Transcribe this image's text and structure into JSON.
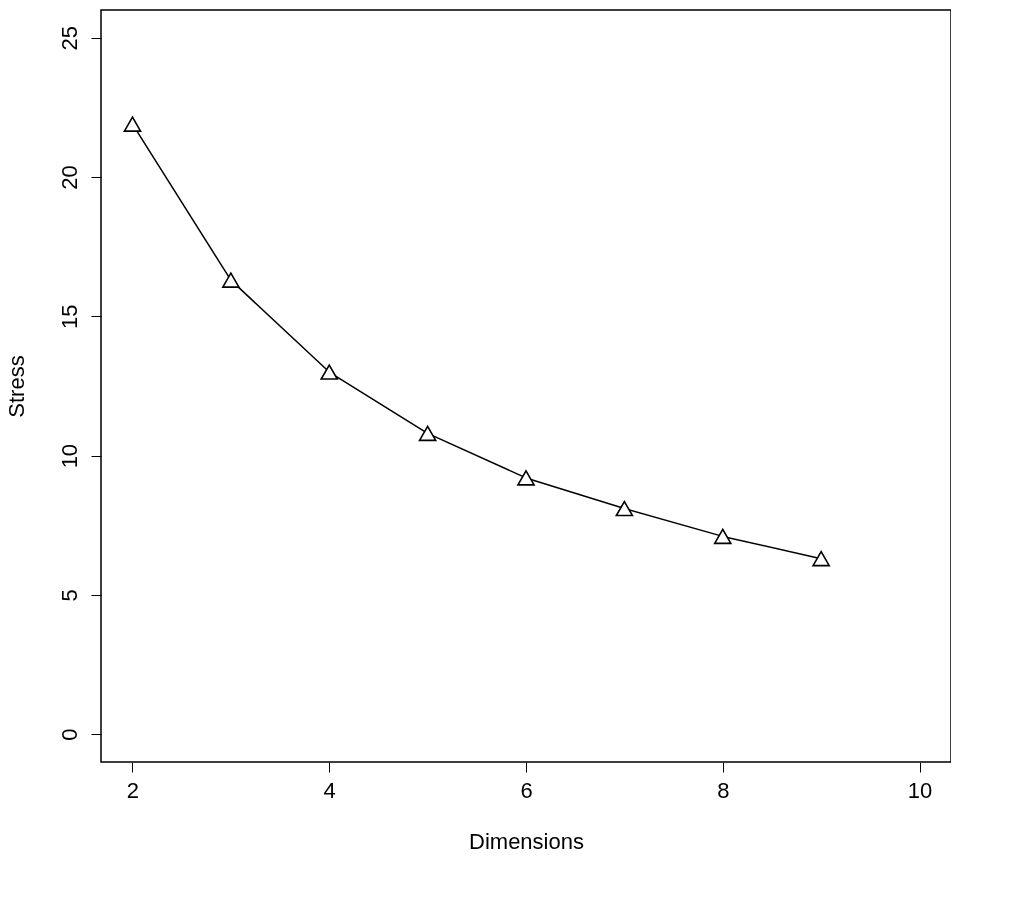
{
  "chart_data": {
    "type": "line",
    "xlabel": "Dimensions",
    "ylabel": "Stress",
    "x": [
      2,
      3,
      4,
      5,
      6,
      7,
      8,
      9
    ],
    "series": [
      {
        "color": "#000000",
        "values": [
          21.9,
          16.3,
          13.0,
          10.8,
          9.2,
          8.1,
          7.1,
          6.3
        ]
      }
    ],
    "xlim": [
      1.68,
      10.32
    ],
    "xticks": [
      2,
      4,
      6,
      8,
      10
    ],
    "ylim": [
      -1,
      26
    ],
    "yticks": [
      0,
      5,
      10,
      15,
      20,
      25
    ],
    "marker": "triangle",
    "line_style": "solid",
    "grid": false,
    "legend": false
  }
}
